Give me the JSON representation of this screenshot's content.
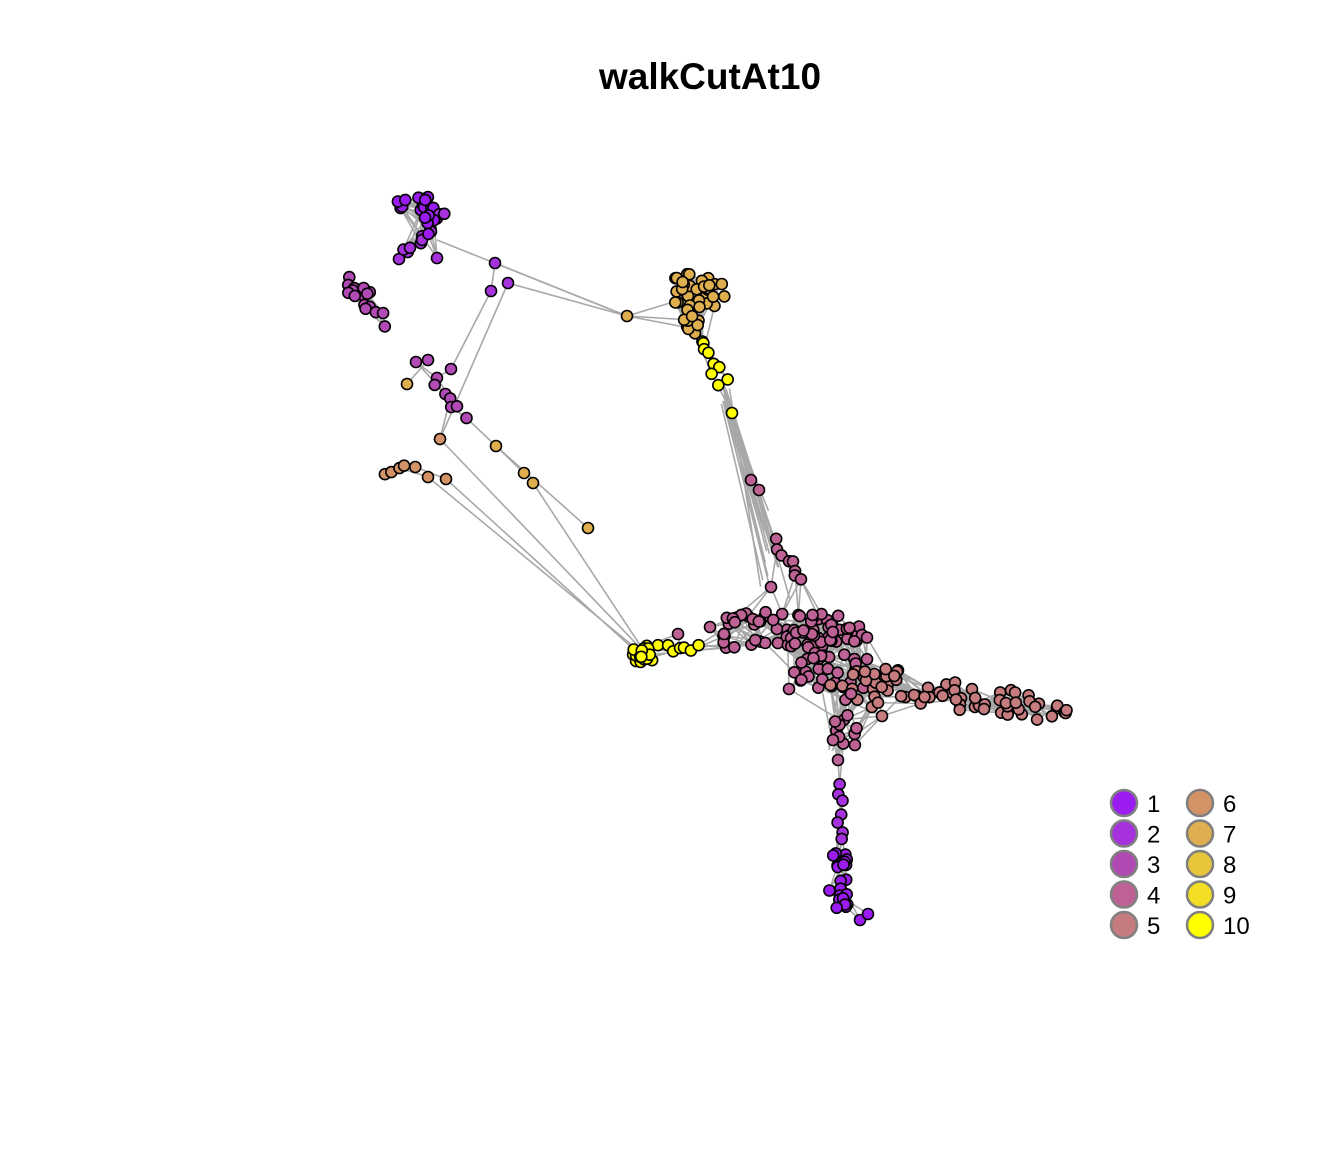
{
  "title": "walkCutAt10",
  "palette": {
    "1": "#9B1CF0",
    "2": "#A532DC",
    "3": "#B24AB6",
    "4": "#BE6296",
    "5": "#C67B7F",
    "6": "#D49367",
    "7": "#DFAE4F",
    "8": "#E8C63A",
    "9": "#F2DE24",
    "10": "#FFFF00"
  },
  "legend": [
    {
      "label": "1",
      "group": "1"
    },
    {
      "label": "2",
      "group": "2"
    },
    {
      "label": "3",
      "group": "3"
    },
    {
      "label": "4",
      "group": "4"
    },
    {
      "label": "5",
      "group": "5"
    },
    {
      "label": "6",
      "group": "6"
    },
    {
      "label": "7",
      "group": "7"
    },
    {
      "label": "8",
      "group": "8"
    },
    {
      "label": "9",
      "group": "9"
    },
    {
      "label": "10",
      "group": "10"
    }
  ],
  "edge_color": "#A8A8A8",
  "node_outline": "#000000"
}
